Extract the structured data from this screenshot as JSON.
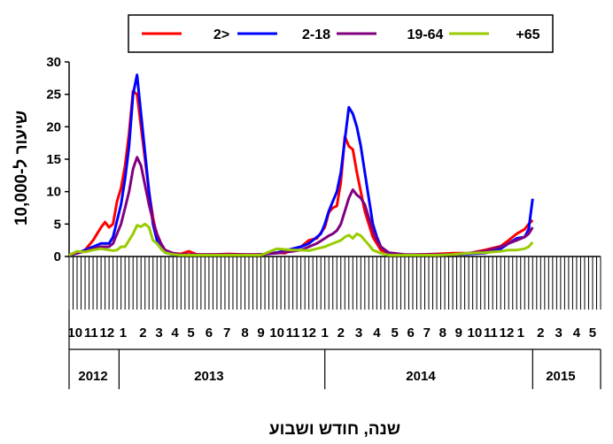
{
  "chart_data": {
    "type": "line",
    "title": "",
    "ylabel": "שיעור ל-10,000",
    "xlabel": "שנה, חודש ושבוע",
    "ylim": [
      0,
      30
    ],
    "yticks": [
      0,
      5,
      10,
      15,
      20,
      25,
      30
    ],
    "legend_position": "top",
    "grid": false,
    "weeks_total": 106,
    "month_labels": [
      {
        "label": "10",
        "week": 1.5
      },
      {
        "label": "11",
        "week": 5.5
      },
      {
        "label": "12",
        "week": 9.5
      },
      {
        "label": "1",
        "week": 13.5
      },
      {
        "label": "2",
        "week": 18.5
      },
      {
        "label": "3",
        "week": 22.5
      },
      {
        "label": "4",
        "week": 26.5
      },
      {
        "label": "5",
        "week": 30.5
      },
      {
        "label": "6",
        "week": 35
      },
      {
        "label": "7",
        "week": 39.5
      },
      {
        "label": "8",
        "week": 44
      },
      {
        "label": "9",
        "week": 48
      },
      {
        "label": "10",
        "week": 52
      },
      {
        "label": "11",
        "week": 56
      },
      {
        "label": "12",
        "week": 60
      },
      {
        "label": "1",
        "week": 64
      },
      {
        "label": "2",
        "week": 68
      },
      {
        "label": "3",
        "week": 72.5
      },
      {
        "label": "4",
        "week": 77
      },
      {
        "label": "5",
        "week": 81.5
      },
      {
        "label": "6",
        "week": 85.5
      },
      {
        "label": "7",
        "week": 89.5
      },
      {
        "label": "8",
        "week": 93.5
      },
      {
        "label": "9",
        "week": 97.5
      },
      {
        "label": "10",
        "week": 101.5
      },
      {
        "label": "11",
        "week": 105.5
      },
      {
        "label": "12",
        "week": 109.5
      },
      {
        "label": "1",
        "week": 113
      },
      {
        "label": "2",
        "week": 118
      },
      {
        "label": "3",
        "week": 122.5
      },
      {
        "label": "4",
        "week": 127
      },
      {
        "label": "5",
        "week": 131
      }
    ],
    "years": [
      {
        "label": "2012",
        "week": 6
      },
      {
        "label": "2013",
        "week": 35
      },
      {
        "label": "2014",
        "week": 88
      },
      {
        "label": "2015",
        "week": 123
      }
    ],
    "year_boundaries": [
      12.5,
      64,
      116,
      133
    ],
    "axis_weeks": 133,
    "series": [
      {
        "name": "2>",
        "color": "#ff0000",
        "x": [
          0,
          2,
          4,
          6,
          7,
          8,
          9,
          10,
          11,
          12,
          13,
          14,
          15,
          16,
          17,
          18,
          19,
          20,
          21,
          22,
          23,
          24,
          26,
          28,
          30,
          32,
          36,
          40,
          44,
          48,
          52,
          54,
          56,
          58,
          60,
          62,
          64,
          65,
          66,
          67,
          68,
          69,
          70,
          71,
          72,
          73,
          74,
          75,
          76,
          78,
          80,
          84,
          88,
          92,
          96,
          100,
          104,
          108,
          110,
          112,
          114,
          115,
          116
        ],
        "y": [
          0.2,
          0.5,
          1.0,
          2.5,
          3.5,
          4.5,
          5.3,
          4.5,
          5.0,
          8.5,
          10.5,
          14,
          19,
          25.5,
          25,
          20,
          15,
          10,
          6,
          3,
          1.5,
          0.8,
          0.5,
          0.4,
          0.8,
          0.3,
          0.3,
          0.4,
          0.3,
          0.3,
          0.6,
          0.5,
          1.2,
          1.5,
          2.5,
          2.8,
          4.5,
          6.8,
          7.5,
          7.8,
          11.5,
          18.5,
          17,
          16.5,
          13,
          10,
          7,
          5,
          3,
          1.0,
          0.4,
          0.2,
          0.3,
          0.4,
          0.5,
          0.5,
          1.0,
          1.6,
          2.5,
          3.5,
          4.2,
          5.0,
          5.6
        ]
      },
      {
        "name": "2-18",
        "color": "#0000ff",
        "x": [
          0,
          2,
          4,
          6,
          8,
          10,
          11,
          12,
          13,
          14,
          15,
          16,
          17,
          18,
          19,
          20,
          21,
          22,
          23,
          24,
          26,
          28,
          32,
          36,
          40,
          44,
          48,
          52,
          56,
          58,
          60,
          62,
          63,
          64,
          65,
          66,
          67,
          68,
          69,
          70,
          71,
          72,
          73,
          74,
          75,
          76,
          77,
          78,
          80,
          84,
          88,
          92,
          96,
          100,
          104,
          108,
          110,
          112,
          114,
          115,
          116
        ],
        "y": [
          0.2,
          0.5,
          1.0,
          1.5,
          2.0,
          2.0,
          3.0,
          5.5,
          8,
          12,
          17,
          25,
          28,
          22,
          16,
          10,
          5,
          2.5,
          1.2,
          0.6,
          0.3,
          0.2,
          0.2,
          0.2,
          0.2,
          0.2,
          0.3,
          0.6,
          1.2,
          1.5,
          2.0,
          3.0,
          3.5,
          5,
          7,
          8.5,
          10,
          13,
          18,
          23,
          22,
          20,
          17,
          13,
          9,
          5,
          3,
          1.5,
          0.5,
          0.2,
          0.2,
          0.2,
          0.3,
          0.4,
          0.5,
          1.2,
          2.0,
          2.8,
          3.0,
          4.2,
          8.9
        ]
      },
      {
        "name": "19-64",
        "color": "#800080",
        "x": [
          0,
          2,
          4,
          6,
          8,
          10,
          11,
          12,
          13,
          14,
          15,
          16,
          17,
          18,
          19,
          20,
          21,
          22,
          23,
          24,
          26,
          28,
          32,
          36,
          40,
          44,
          48,
          52,
          56,
          58,
          60,
          62,
          64,
          65,
          66,
          67,
          68,
          69,
          70,
          71,
          72,
          73,
          74,
          75,
          76,
          77,
          78,
          80,
          84,
          88,
          92,
          96,
          100,
          104,
          108,
          110,
          112,
          114,
          115,
          116
        ],
        "y": [
          0.2,
          0.5,
          0.8,
          1.2,
          1.5,
          1.5,
          2.0,
          3.5,
          5,
          7.5,
          10,
          13.5,
          15.3,
          14,
          11,
          8,
          5.5,
          3.5,
          2.0,
          1.0,
          0.5,
          0.3,
          0.3,
          0.3,
          0.3,
          0.3,
          0.3,
          0.5,
          0.8,
          1.0,
          1.5,
          2.0,
          2.8,
          3.2,
          3.5,
          4.0,
          5.0,
          7,
          9,
          10.3,
          9.5,
          9,
          8,
          6,
          4,
          2.5,
          1.5,
          0.6,
          0.3,
          0.3,
          0.3,
          0.3,
          0.5,
          0.8,
          1.5,
          2.0,
          2.5,
          3.0,
          3.5,
          4.5
        ]
      },
      {
        "name": "+65",
        "color": "#99cc00",
        "x": [
          0,
          2,
          4,
          6,
          8,
          10,
          11,
          12,
          13,
          14,
          15,
          16,
          17,
          18,
          19,
          20,
          21,
          22,
          23,
          24,
          26,
          28,
          32,
          36,
          40,
          44,
          48,
          52,
          56,
          58,
          60,
          62,
          64,
          66,
          68,
          69,
          70,
          71,
          72,
          73,
          74,
          75,
          76,
          78,
          80,
          84,
          88,
          92,
          96,
          100,
          104,
          108,
          110,
          112,
          114,
          115,
          116
        ],
        "y": [
          0.2,
          0.8,
          0.7,
          1.0,
          1.2,
          1.0,
          0.9,
          1.0,
          1.5,
          1.5,
          2.5,
          3.5,
          4.8,
          4.6,
          5.0,
          4.5,
          2.5,
          2.0,
          1.2,
          0.6,
          0.3,
          0.2,
          0.2,
          0.2,
          0.2,
          0.2,
          0.2,
          1.2,
          1.0,
          1.0,
          0.9,
          1.2,
          1.5,
          2.0,
          2.5,
          3.0,
          3.3,
          2.8,
          3.5,
          3.2,
          2.5,
          1.8,
          1.0,
          0.5,
          0.2,
          0.2,
          0.2,
          0.2,
          0.3,
          0.5,
          0.6,
          0.8,
          1.0,
          1.0,
          1.2,
          1.5,
          2.2
        ]
      }
    ]
  }
}
